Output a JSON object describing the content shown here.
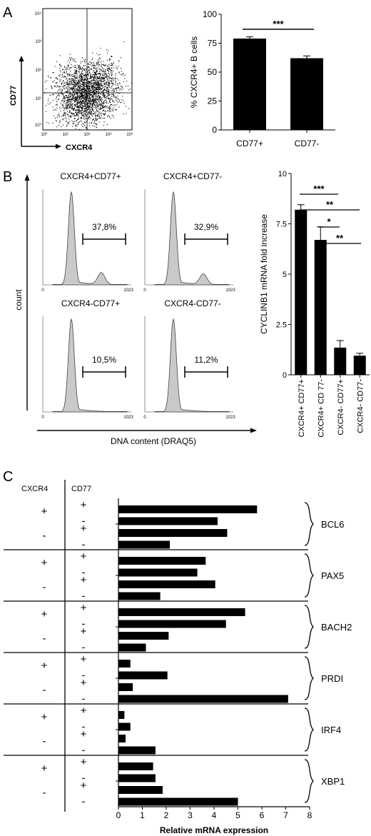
{
  "panels": {
    "A": {
      "letter": "A"
    },
    "B": {
      "letter": "B"
    },
    "C": {
      "letter": "C"
    }
  },
  "scatter_plot": {
    "y_label": "CD77",
    "x_label": "CXCR4",
    "x_ticks": [
      "10⁰",
      "10¹",
      "10²",
      "10³",
      "10⁴"
    ],
    "y_ticks": [
      "10⁰",
      "10¹",
      "10²",
      "10³",
      "10⁴"
    ]
  },
  "histograms": {
    "y_label": "count",
    "x_label": "DNA content (DRAQ5)",
    "axis_min": "0",
    "axis_max": "1023",
    "items": [
      {
        "title": "CXCR4+CD77+",
        "percent": "37,8%",
        "secondary_peak": 0.18
      },
      {
        "title": "CXCR4+CD77-",
        "percent": "32,9%",
        "secondary_peak": 0.16
      },
      {
        "title": "CXCR4-CD77+",
        "percent": "10,5%",
        "secondary_peak": 0.0
      },
      {
        "title": "CXCR4-CD77-",
        "percent": "11,2%",
        "secondary_peak": 0.0
      }
    ]
  },
  "chart_data": [
    {
      "type": "bar",
      "id": "A-bar",
      "categories": [
        "CD77+",
        "CD77-"
      ],
      "values": [
        79,
        62
      ],
      "errors": [
        1.5,
        2
      ],
      "ylabel": "% CXCR4+ B cells",
      "yticks": [
        "0",
        "25",
        "50",
        "75",
        "100"
      ],
      "ylim": [
        0,
        100
      ],
      "significance": [
        {
          "from": 0,
          "to": 1,
          "label": "***"
        }
      ]
    },
    {
      "type": "bar",
      "id": "B-bar",
      "categories": [
        "CXCR4+ CD77+",
        "CXCR4+ CD 77-",
        "CXCR4- CD77+",
        "CXCR4- CD77-"
      ],
      "values": [
        8.2,
        6.7,
        1.35,
        0.95
      ],
      "errors": [
        0.25,
        0.65,
        0.35,
        0.12
      ],
      "ylabel": "CYCLINB1 mRNA fold increase",
      "yticks": [
        "0",
        "2.5",
        "5",
        "7.5",
        "10"
      ],
      "ylim": [
        0,
        10
      ],
      "significance": [
        {
          "from": 0,
          "to": 2,
          "label": "***"
        },
        {
          "from": 0,
          "to": 3,
          "label": "**"
        },
        {
          "from": 1,
          "to": 2,
          "label": "*"
        },
        {
          "from": 1,
          "to": 3,
          "label": "**"
        }
      ]
    },
    {
      "type": "bar",
      "id": "C-bar",
      "orientation": "horizontal",
      "xlabel": "Relative mRNA expression",
      "xticks": [
        "0",
        "1",
        "2",
        "3",
        "4",
        "5",
        "6",
        "7",
        "8"
      ],
      "xlim": [
        0,
        8
      ],
      "col_headers": [
        "CXCR4",
        "CD77"
      ],
      "cxcr4_marks": [
        "+",
        "-"
      ],
      "cd77_marks": [
        "+",
        "-",
        "+",
        "-"
      ],
      "groups": [
        {
          "gene": "BCL6",
          "values": [
            5.8,
            4.15,
            4.55,
            2.15
          ]
        },
        {
          "gene": "PAX5",
          "values": [
            3.65,
            3.3,
            4.05,
            1.75
          ]
        },
        {
          "gene": "BACH2",
          "values": [
            5.3,
            4.5,
            2.1,
            1.15
          ]
        },
        {
          "gene": "PRDI",
          "values": [
            0.5,
            2.05,
            0.6,
            7.1
          ]
        },
        {
          "gene": "IRF4",
          "values": [
            0.25,
            0.5,
            0.3,
            1.55
          ]
        },
        {
          "gene": "XBP1",
          "values": [
            1.45,
            1.55,
            1.85,
            5.0
          ]
        }
      ]
    }
  ]
}
